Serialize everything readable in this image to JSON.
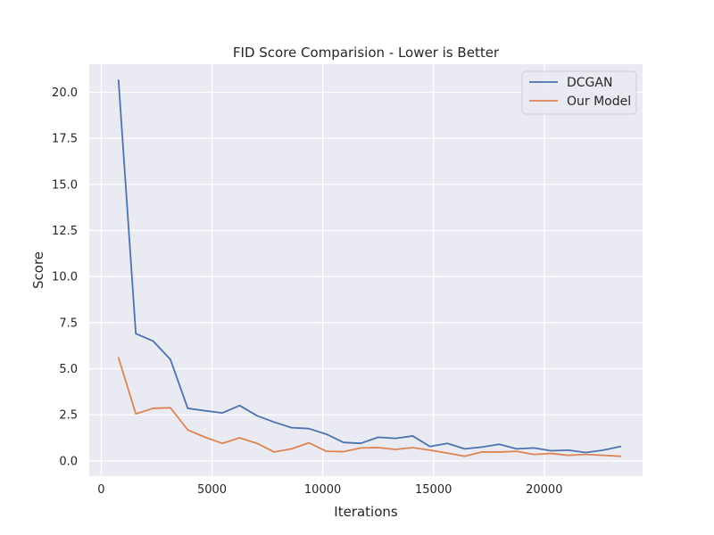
{
  "chart_data": {
    "type": "line",
    "title": "FID Score Comparision - Lower is Better",
    "xlabel": "Iterations",
    "ylabel": "Score",
    "xlim": [
      -540,
      24440
    ],
    "ylim": [
      -0.83,
      21.52
    ],
    "xticks": [
      0,
      5000,
      10000,
      15000,
      20000
    ],
    "yticks": [
      0.0,
      2.5,
      5.0,
      7.5,
      10.0,
      12.5,
      15.0,
      17.5,
      20.0
    ],
    "ytick_labels": [
      "0.0",
      "2.5",
      "5.0",
      "7.5",
      "10.0",
      "12.5",
      "15.0",
      "17.5",
      "20.0"
    ],
    "grid": true,
    "legend_position": "top-right",
    "x": [
      781,
      1562,
      2343,
      3125,
      3906,
      4687,
      5468,
      6250,
      7031,
      7812,
      8593,
      9375,
      10156,
      10937,
      11718,
      12500,
      13281,
      14062,
      14843,
      15625,
      16406,
      17187,
      17968,
      18750,
      19531,
      20312,
      21093,
      21875,
      22656,
      23437
    ],
    "series": [
      {
        "name": "DCGAN",
        "color": "#4c72b0",
        "values": [
          20.65,
          6.9,
          6.5,
          5.5,
          2.85,
          2.72,
          2.6,
          3.0,
          2.45,
          2.1,
          1.8,
          1.75,
          1.45,
          1.0,
          0.95,
          1.28,
          1.22,
          1.35,
          0.78,
          0.95,
          0.65,
          0.75,
          0.9,
          0.65,
          0.7,
          0.55,
          0.58,
          0.45,
          0.58,
          0.78
        ]
      },
      {
        "name": "Our Model",
        "color": "#dd8452",
        "values": [
          5.6,
          2.55,
          2.85,
          2.88,
          1.68,
          1.28,
          0.95,
          1.25,
          0.95,
          0.48,
          0.65,
          0.98,
          0.52,
          0.5,
          0.7,
          0.72,
          0.62,
          0.72,
          0.58,
          0.42,
          0.25,
          0.48,
          0.48,
          0.52,
          0.35,
          0.4,
          0.3,
          0.35,
          0.3,
          0.25
        ]
      }
    ]
  }
}
